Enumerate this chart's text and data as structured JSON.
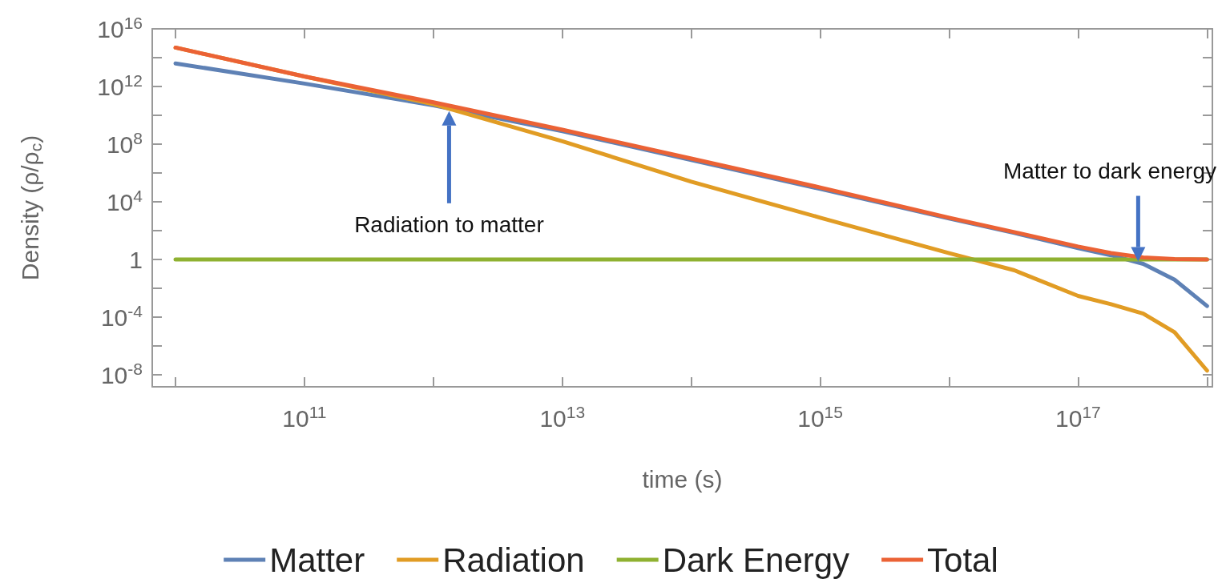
{
  "chart_data": {
    "type": "line",
    "xlabel": "time (s)",
    "ylabel": "Density (ρ/ρ$_{c}$)",
    "log": "xy",
    "xlim": [
      6600000000.0,
      1.1e+18
    ],
    "ylim": [
      1.5e-09,
      1e+16
    ],
    "xticks": [
      {
        "value": 10000000000.0,
        "label": null
      },
      {
        "value": 100000000000.0,
        "label": "10$^{11}$"
      },
      {
        "value": 1000000000000.0,
        "label": null
      },
      {
        "value": 10000000000000.0,
        "label": "10$^{13}$"
      },
      {
        "value": 100000000000000.0,
        "label": null
      },
      {
        "value": 1000000000000000.0,
        "label": "10$^{15}$"
      },
      {
        "value": 1e+16,
        "label": null
      },
      {
        "value": 1e+17,
        "label": "10$^{17}$"
      },
      {
        "value": 1e+18,
        "label": null
      }
    ],
    "yticks": [
      {
        "value": 1e-08,
        "label": "10$^{-8}$"
      },
      {
        "value": 1e-06,
        "label": null
      },
      {
        "value": 0.0001,
        "label": "10$^{-4}$"
      },
      {
        "value": 0.01,
        "label": null
      },
      1,
      {
        "value": 100,
        "label": null
      },
      {
        "value": 10000.0,
        "label": "10$^{4}$"
      },
      {
        "value": 1000000.0,
        "label": null
      },
      {
        "value": 100000000.0,
        "label": "10$^{8}$"
      },
      {
        "value": 10000000000.0,
        "label": null
      },
      {
        "value": 1000000000000.0,
        "label": "10$^{12}$"
      },
      {
        "value": 100000000000000.0,
        "label": null
      },
      {
        "value": 1e+16,
        "label": "10$^{16}$"
      }
    ],
    "x": [
      10000000000.0,
      100000000000.0,
      1000000000000.0,
      10000000000000.0,
      100000000000000.0,
      1000000000000000.0,
      1e+16,
      3.2e+16,
      1e+17,
      1.8e+17,
      3.2e+17,
      5.6e+17,
      1e+18
    ],
    "series": [
      {
        "name": "Matter",
        "color": "#5e81b5",
        "values": [
          40000000000000.0,
          1600000000000.0,
          50000000000.0,
          800000000.0,
          8000000.0,
          80000.0,
          700,
          70,
          6.3,
          2,
          0.5,
          0.04,
          0.0006
        ]
      },
      {
        "name": "Radiation",
        "color": "#e19c24",
        "values": [
          500000000000000.0,
          5000000000000.0,
          60000000000.0,
          160000000.0,
          250000.0,
          800,
          2.8,
          0.18,
          0.003,
          0.0008,
          0.00018,
          9e-06,
          2e-08
        ]
      },
      {
        "name": "Dark Energy",
        "color": "#8fb131",
        "x": [
          10000000000.0,
          1e+18
        ],
        "values": [
          1,
          1
        ]
      },
      {
        "name": "Total",
        "color": "#eb6235",
        "values": [
          500000000000000.0,
          5000000000000.0,
          80000000000.0,
          1000000000.0,
          10000000.0,
          100000.0,
          800,
          80,
          8,
          2.8,
          1.4,
          1.07,
          1
        ]
      }
    ],
    "annotations": [
      "Radiation to matter",
      "Matter to dark energy"
    ],
    "marker": "none",
    "line_style": "solid",
    "grid": false,
    "legend": "bottom"
  }
}
